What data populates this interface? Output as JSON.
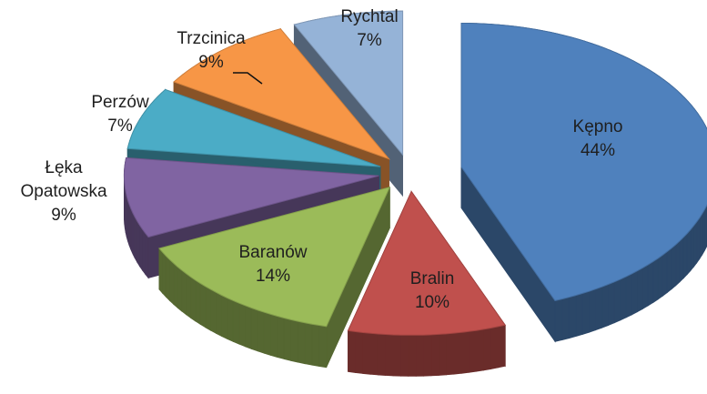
{
  "chart_data": {
    "type": "pie",
    "categories": [
      "Kępno",
      "Bralin",
      "Baranów",
      "Łęka Opatowska",
      "Perzów",
      "Trzcinica",
      "Rychtal"
    ],
    "values": [
      44,
      10,
      14,
      9,
      7,
      9,
      7
    ],
    "value_labels": [
      "44%",
      "10%",
      "14%",
      "9%",
      "7%",
      "9%",
      "7%"
    ],
    "colors": [
      "#4f81bd",
      "#c0504d",
      "#9bbb59",
      "#8064a2",
      "#4bacc6",
      "#f79646",
      "#95b3d7"
    ]
  }
}
